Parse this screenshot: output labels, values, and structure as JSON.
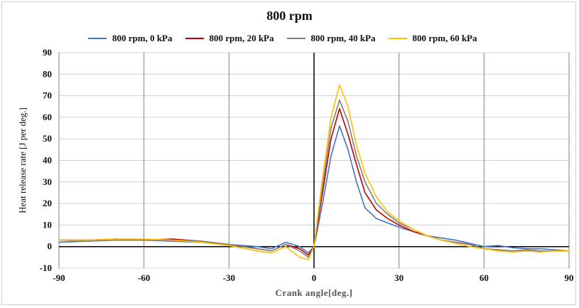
{
  "chart_data": {
    "type": "line",
    "title": "800 rpm",
    "xlabel": "Crank angle[deg.]",
    "ylabel": "Heat release rate [J per deg.]",
    "xlim": [
      -90,
      90
    ],
    "ylim": [
      -10,
      90
    ],
    "xticks": [
      -90,
      -60,
      -30,
      0,
      30,
      60,
      90
    ],
    "yticks": [
      -10,
      0,
      10,
      20,
      30,
      40,
      50,
      60,
      70,
      80,
      90
    ],
    "grid": true,
    "legend_position": "top",
    "series": [
      {
        "name": "800 rpm, 0 kPa",
        "color": "#4472C4",
        "x": [
          -90,
          -80,
          -70,
          -60,
          -50,
          -40,
          -30,
          -20,
          -15,
          -10,
          -5,
          -2,
          0,
          3,
          6,
          9,
          12,
          15,
          18,
          22,
          26,
          30,
          35,
          40,
          45,
          50,
          55,
          60,
          65,
          70,
          75,
          80,
          85,
          90
        ],
        "y": [
          2,
          2.5,
          3,
          3,
          2.5,
          2,
          1,
          0,
          -1,
          2,
          0,
          -3,
          0,
          20,
          42,
          56,
          45,
          30,
          18,
          13,
          11,
          9,
          7,
          5,
          4,
          3,
          1.5,
          0,
          0.5,
          -0.5,
          -1,
          -1,
          -1.5,
          -2
        ]
      },
      {
        "name": "800 rpm, 20 kPa",
        "color": "#C00000",
        "x": [
          -90,
          -80,
          -70,
          -60,
          -50,
          -40,
          -30,
          -20,
          -15,
          -10,
          -5,
          -2,
          0,
          3,
          6,
          9,
          12,
          15,
          18,
          22,
          26,
          30,
          35,
          40,
          45,
          50,
          55,
          60,
          65,
          70,
          75,
          80,
          85,
          90
        ],
        "y": [
          3,
          3,
          3.5,
          3,
          3.5,
          2.5,
          1,
          -1,
          -2,
          1,
          -1,
          -4,
          0,
          25,
          50,
          64,
          52,
          38,
          25,
          17,
          13,
          10,
          7,
          5,
          3,
          2,
          1,
          -1,
          -1.5,
          -2,
          -2,
          -2,
          -2,
          -2
        ]
      },
      {
        "name": "800 rpm, 40 kPa",
        "color": "#7F7F7F",
        "x": [
          -90,
          -80,
          -70,
          -60,
          -50,
          -40,
          -30,
          -20,
          -15,
          -10,
          -5,
          -2,
          0,
          3,
          6,
          9,
          12,
          15,
          18,
          22,
          26,
          30,
          35,
          40,
          45,
          50,
          55,
          60,
          65,
          70,
          75,
          80,
          85,
          90
        ],
        "y": [
          3,
          2.5,
          3,
          3,
          3,
          2.5,
          1,
          -1,
          -2,
          1,
          -2,
          -5,
          0,
          28,
          55,
          68,
          58,
          42,
          30,
          20,
          15,
          11,
          8,
          5,
          3,
          2,
          1,
          -1,
          -1.5,
          -2,
          -1.5,
          -2,
          -2,
          -2
        ]
      },
      {
        "name": "800 rpm, 60 kPa",
        "color": "#FFC000",
        "x": [
          -90,
          -80,
          -70,
          -60,
          -50,
          -40,
          -30,
          -20,
          -15,
          -10,
          -5,
          -2,
          0,
          3,
          6,
          9,
          12,
          15,
          18,
          22,
          26,
          30,
          35,
          40,
          45,
          50,
          55,
          60,
          65,
          70,
          75,
          80,
          85,
          90
        ],
        "y": [
          3,
          3,
          3.5,
          3.5,
          3,
          2,
          0.5,
          -2,
          -3,
          0,
          -5,
          -6,
          0,
          32,
          60,
          75,
          65,
          47,
          34,
          23,
          16,
          12,
          8,
          5,
          3,
          1.5,
          0,
          -1,
          -2,
          -2.5,
          -2,
          -2.5,
          -2,
          -2
        ]
      }
    ]
  }
}
